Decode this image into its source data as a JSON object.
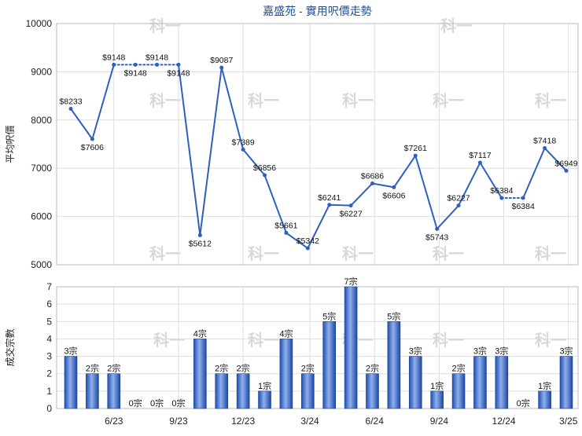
{
  "chart_data": [
    {
      "type": "line",
      "title": "嘉盛苑 - 實用呎價走勢",
      "ylabel": "平均呎價",
      "ylim": [
        5000,
        10000
      ],
      "yticks": [
        5000,
        6000,
        7000,
        8000,
        9000,
        10000
      ],
      "grid": true,
      "xtick_labels": [
        "6/23",
        "9/23",
        "12/23",
        "3/24",
        "6/24",
        "9/24",
        "12/24",
        "3/25"
      ],
      "color": "#2f5fc0",
      "values": [
        8233,
        7606,
        9148,
        9148,
        9148,
        9148,
        5612,
        9087,
        7389,
        6856,
        5661,
        5342,
        6241,
        6227,
        6686,
        6606,
        7261,
        5743,
        6227,
        7117,
        6384,
        6384,
        7418,
        6949
      ],
      "labels": [
        "$8233",
        "$7606",
        "$9148",
        "$9148",
        "$9148",
        "$9148",
        "$5612",
        "$9087",
        "$7389",
        "$6856",
        "$5661",
        "$5342",
        "$6241",
        "$6227",
        "$6686",
        "$6606",
        "$7261",
        "$5743",
        "$6227",
        "$7117",
        "$6384",
        "$6384",
        "$7418",
        "$6949"
      ],
      "dotted_segments": [
        2,
        3,
        4,
        20
      ]
    },
    {
      "type": "bar",
      "ylabel": "成交宗數",
      "ylim": [
        0,
        7
      ],
      "yticks": [
        0,
        1,
        2,
        3,
        4,
        5,
        6,
        7
      ],
      "grid": true,
      "xtick_labels": [
        "6/23",
        "9/23",
        "12/23",
        "3/24",
        "6/24",
        "9/24",
        "12/24",
        "3/25"
      ],
      "values": [
        3,
        2,
        2,
        0,
        0,
        0,
        4,
        2,
        2,
        1,
        4,
        2,
        5,
        7,
        2,
        5,
        3,
        1,
        2,
        3,
        3,
        0,
        1,
        3
      ],
      "labels": [
        "3宗",
        "2宗",
        "2宗",
        "0宗",
        "0宗",
        "0宗",
        "4宗",
        "2宗",
        "2宗",
        "1宗",
        "4宗",
        "2宗",
        "5宗",
        "7宗",
        "2宗",
        "5宗",
        "3宗",
        "1宗",
        "2宗",
        "3宗",
        "3宗",
        "0宗",
        "1宗",
        "3宗"
      ]
    }
  ],
  "watermark": "科一"
}
